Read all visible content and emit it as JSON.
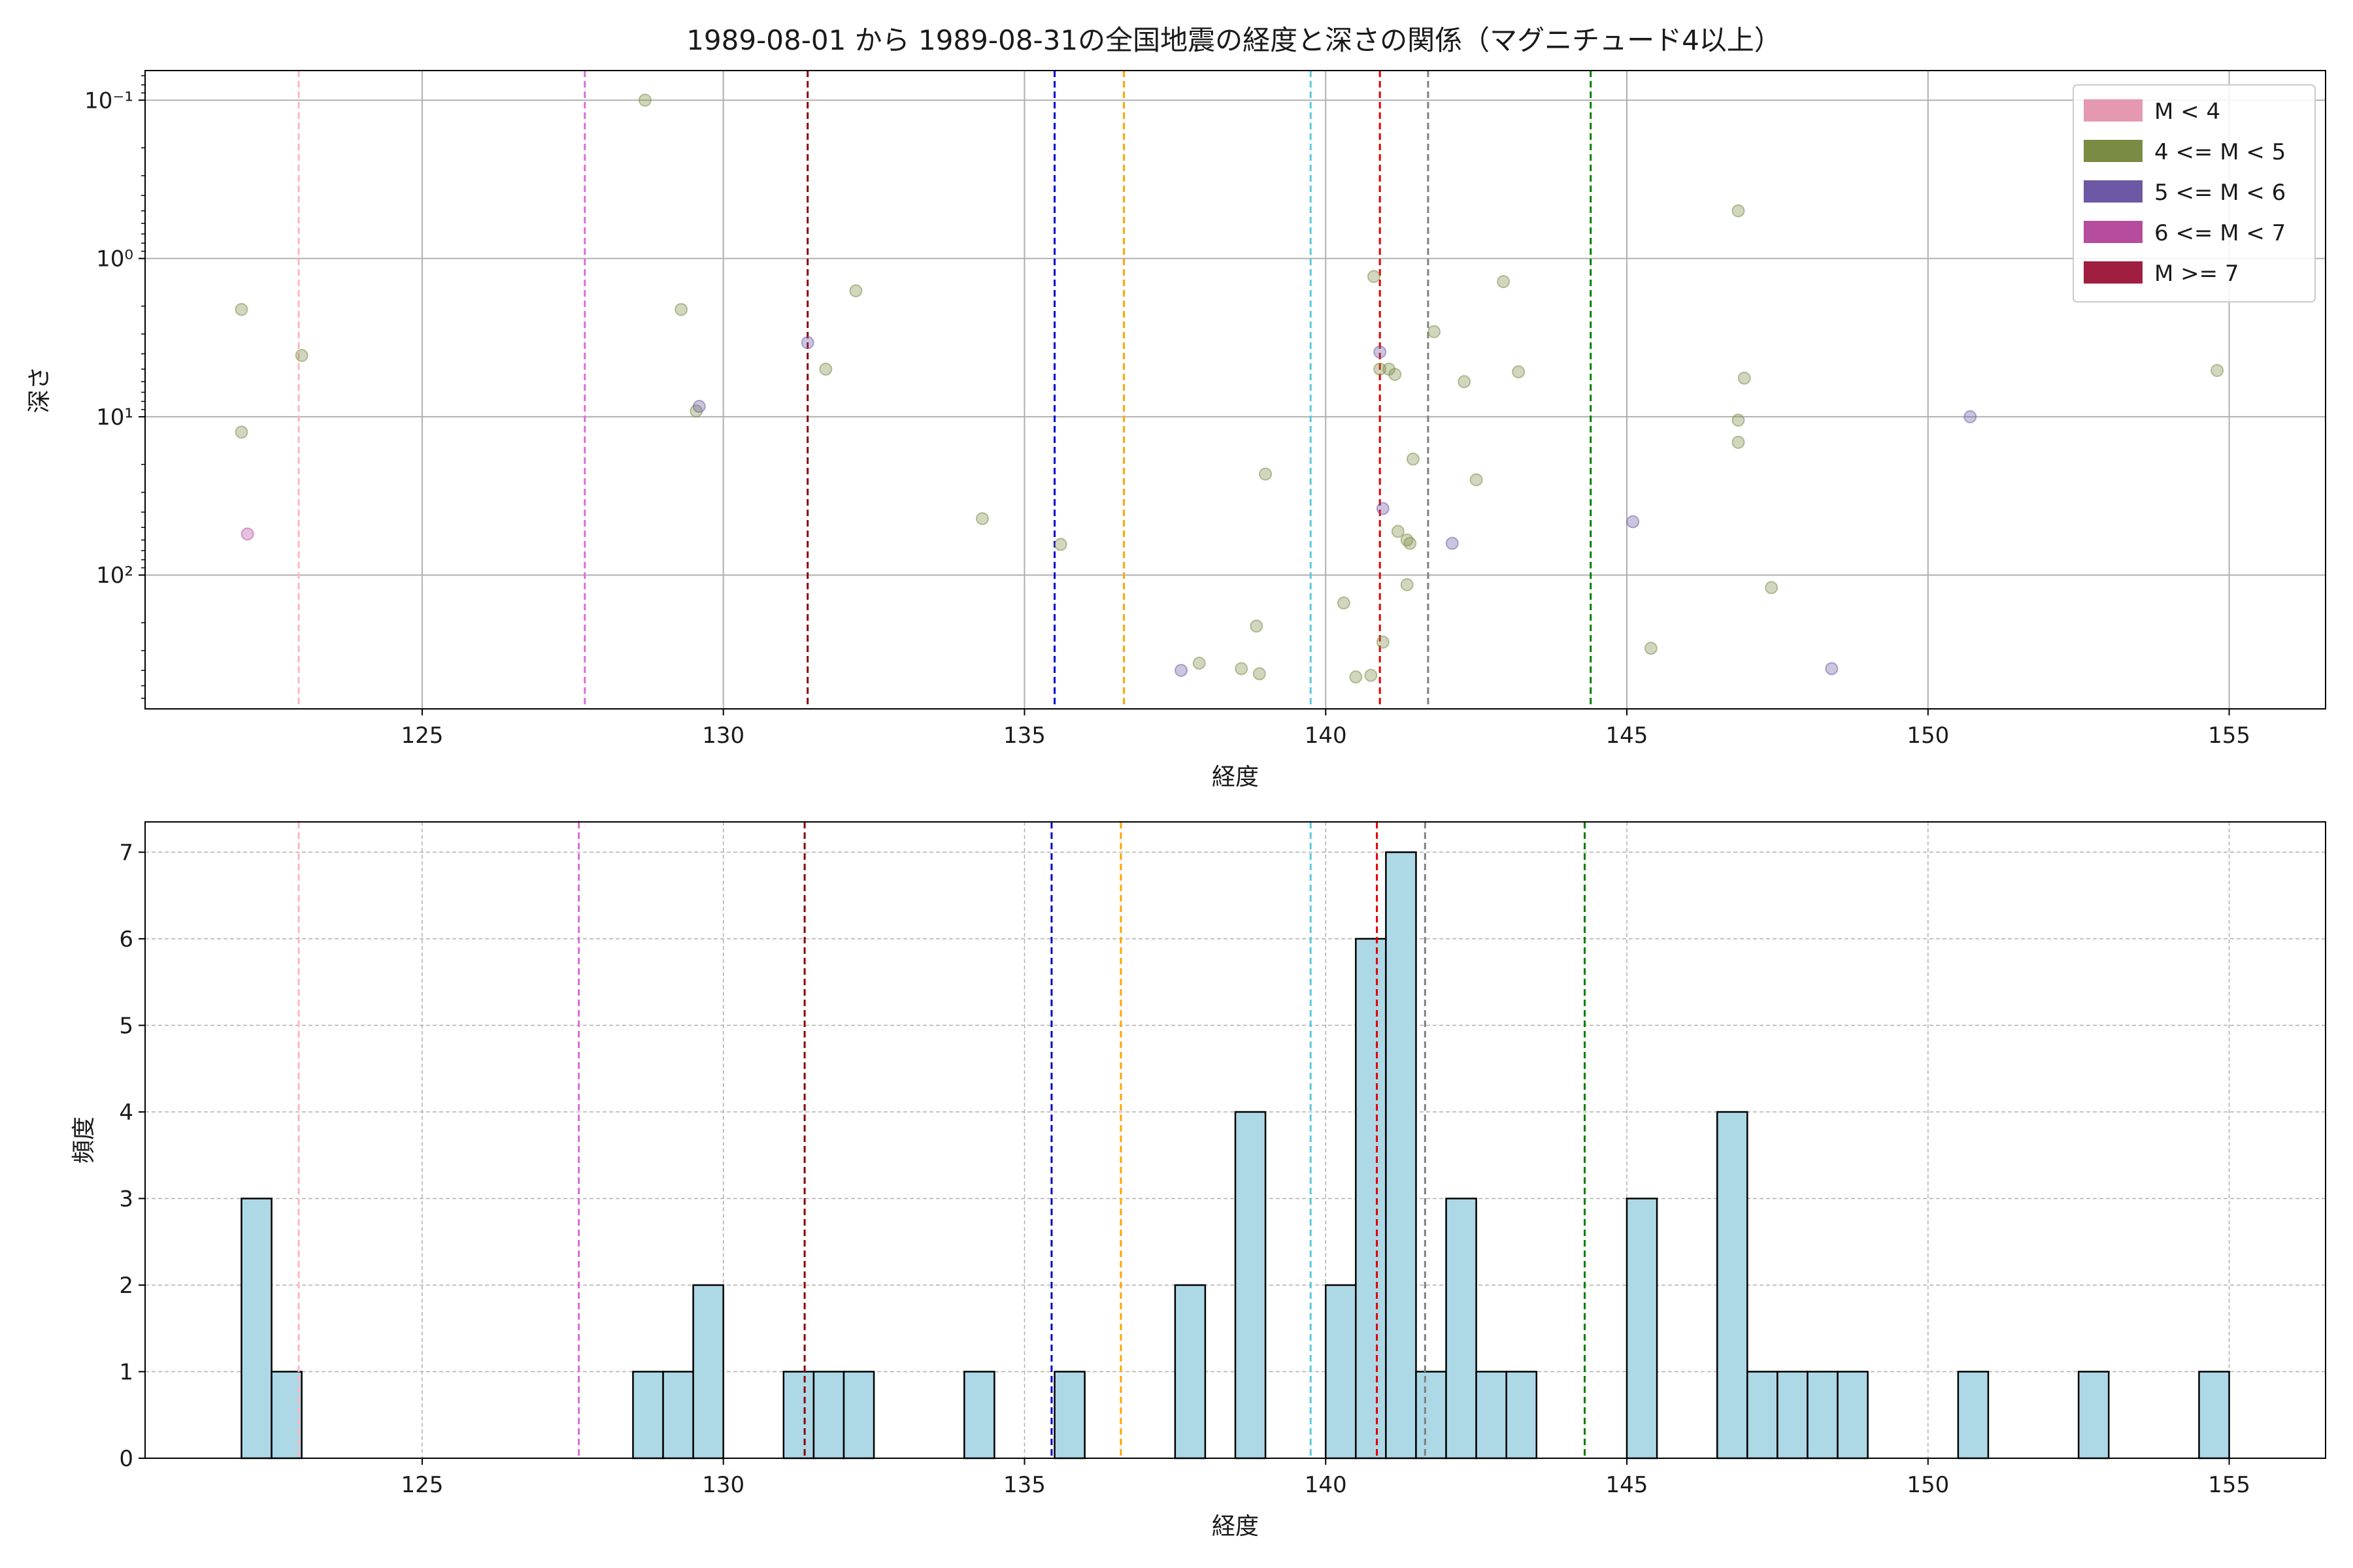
{
  "chart_data": [
    {
      "type": "scatter",
      "title": "1989-08-01 から 1989-08-31の全国地震の経度と深さの関係（マグニチュード4以上）",
      "xlabel": "経度",
      "ylabel": "深さ",
      "xlim": [
        120.4,
        156.6
      ],
      "ylim": [
        700,
        0.065
      ],
      "yscale": "log",
      "y_inverted": true,
      "x_ticks": [
        125,
        130,
        135,
        140,
        145,
        150,
        155
      ],
      "y_ticks": [
        {
          "value": 0.1,
          "label": "10⁻¹"
        },
        {
          "value": 1,
          "label": "10⁰"
        },
        {
          "value": 10,
          "label": "10¹"
        },
        {
          "value": 100,
          "label": "10²"
        }
      ],
      "grid": true,
      "legend": {
        "position": "top-right",
        "entries": [
          {
            "label": "M < 4",
            "color": "#e599b1"
          },
          {
            "label": "4 <= M < 5",
            "color": "#7a8b44"
          },
          {
            "label": "5 <= M < 6",
            "color": "#6c58a4"
          },
          {
            "label": "6 <= M < 7",
            "color": "#b54c9e"
          },
          {
            "label": "M >= 7",
            "color": "#a01f40"
          }
        ]
      },
      "vlines": [
        {
          "x": 122.95,
          "color": "#ffb6c1"
        },
        {
          "x": 127.7,
          "color": "#da70d6"
        },
        {
          "x": 131.4,
          "color": "#8b0000"
        },
        {
          "x": 135.5,
          "color": "#0000cd"
        },
        {
          "x": 136.65,
          "color": "#ffa500"
        },
        {
          "x": 139.75,
          "color": "#5bc8d8"
        },
        {
          "x": 140.9,
          "color": "#e00000"
        },
        {
          "x": 141.7,
          "color": "#808080"
        },
        {
          "x": 144.4,
          "color": "#008000"
        }
      ],
      "series": [
        {
          "name": "4 <= M < 5",
          "color": "#7a8b44",
          "points": [
            [
              122.0,
              2.1
            ],
            [
              122.0,
              12.5
            ],
            [
              123.0,
              4.1
            ],
            [
              128.7,
              0.1
            ],
            [
              129.3,
              2.1
            ],
            [
              129.55,
              9.2
            ],
            [
              131.7,
              5.0
            ],
            [
              132.2,
              1.6
            ],
            [
              134.3,
              44
            ],
            [
              135.6,
              64
            ],
            [
              137.9,
              360
            ],
            [
              138.6,
              390
            ],
            [
              138.85,
              210
            ],
            [
              138.9,
              420
            ],
            [
              139.0,
              23
            ],
            [
              140.3,
              150
            ],
            [
              140.5,
              440
            ],
            [
              140.75,
              430
            ],
            [
              140.8,
              1.3
            ],
            [
              140.9,
              5.0
            ],
            [
              140.95,
              265
            ],
            [
              141.05,
              5.0
            ],
            [
              141.15,
              5.4
            ],
            [
              141.2,
              53
            ],
            [
              141.35,
              60
            ],
            [
              141.4,
              63
            ],
            [
              141.35,
              115
            ],
            [
              141.45,
              18.5
            ],
            [
              141.8,
              2.9
            ],
            [
              142.3,
              6.0
            ],
            [
              142.5,
              25
            ],
            [
              142.95,
              1.4
            ],
            [
              143.2,
              5.2
            ],
            [
              145.4,
              290
            ],
            [
              146.85,
              0.5
            ],
            [
              146.85,
              10.5
            ],
            [
              146.85,
              14.5
            ],
            [
              146.95,
              5.7
            ],
            [
              147.4,
              120
            ],
            [
              154.8,
              5.1
            ]
          ]
        },
        {
          "name": "5 <= M < 6",
          "color": "#6c58a4",
          "points": [
            [
              129.6,
              8.6
            ],
            [
              131.4,
              3.4
            ],
            [
              137.6,
              400
            ],
            [
              140.9,
              3.9
            ],
            [
              140.95,
              38
            ],
            [
              142.1,
              63
            ],
            [
              145.1,
              46
            ],
            [
              148.4,
              390
            ],
            [
              150.7,
              10.0
            ]
          ]
        },
        {
          "name": "6 <= M < 7",
          "color": "#b54c9e",
          "points": [
            [
              122.1,
              55
            ]
          ]
        }
      ]
    },
    {
      "type": "bar",
      "subtype": "histogram",
      "xlabel": "経度",
      "ylabel": "頻度",
      "xlim": [
        120.4,
        156.6
      ],
      "ylim": [
        0,
        7.35
      ],
      "bin_width": 0.5,
      "x_ticks": [
        125,
        130,
        135,
        140,
        145,
        150,
        155
      ],
      "y_ticks": [
        0,
        1,
        2,
        3,
        4,
        5,
        6,
        7
      ],
      "grid": true,
      "bar_color": "#add8e6",
      "bins": [
        [
          122.0,
          3
        ],
        [
          122.5,
          1
        ],
        [
          128.5,
          1
        ],
        [
          129.0,
          1
        ],
        [
          129.5,
          2
        ],
        [
          131.0,
          1
        ],
        [
          131.5,
          1
        ],
        [
          132.0,
          1
        ],
        [
          134.0,
          1
        ],
        [
          135.5,
          1
        ],
        [
          137.5,
          2
        ],
        [
          138.5,
          4
        ],
        [
          140.0,
          2
        ],
        [
          140.5,
          6
        ],
        [
          141.0,
          7
        ],
        [
          141.5,
          1
        ],
        [
          142.0,
          3
        ],
        [
          142.5,
          1
        ],
        [
          143.0,
          1
        ],
        [
          145.0,
          3
        ],
        [
          146.5,
          4
        ],
        [
          147.0,
          1
        ],
        [
          147.5,
          1
        ],
        [
          148.0,
          1
        ],
        [
          148.5,
          1
        ],
        [
          150.5,
          1
        ],
        [
          152.5,
          1
        ],
        [
          154.5,
          1
        ]
      ],
      "vlines": [
        {
          "x": 122.95,
          "color": "#ffb6c1"
        },
        {
          "x": 127.6,
          "color": "#da70d6"
        },
        {
          "x": 131.35,
          "color": "#8b0000"
        },
        {
          "x": 135.45,
          "color": "#0000cd"
        },
        {
          "x": 136.6,
          "color": "#ffa500"
        },
        {
          "x": 139.75,
          "color": "#5bc8d8"
        },
        {
          "x": 140.85,
          "color": "#e00000"
        },
        {
          "x": 141.65,
          "color": "#808080"
        },
        {
          "x": 144.3,
          "color": "#008000"
        }
      ]
    }
  ]
}
